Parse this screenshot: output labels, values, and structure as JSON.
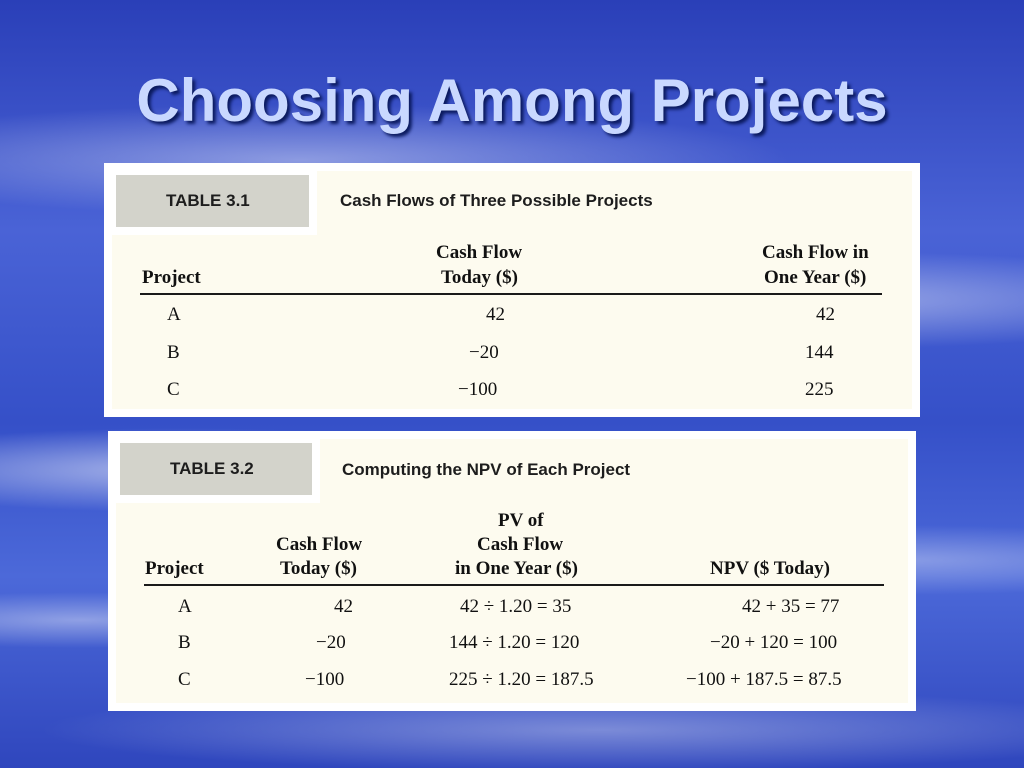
{
  "slide": {
    "title": "Choosing Among Projects"
  },
  "table1": {
    "tag": "TABLE 3.1",
    "caption": "Cash Flows of Three Possible Projects",
    "headers": {
      "project": "Project",
      "today_line1": "Cash Flow",
      "today_line2": "Today ($)",
      "year_line1": "Cash Flow in",
      "year_line2": "One Year ($)"
    },
    "rows": [
      {
        "project": "A",
        "today": "42",
        "one_year": "42"
      },
      {
        "project": "B",
        "today": "−20",
        "one_year": "144"
      },
      {
        "project": "C",
        "today": "−100",
        "one_year": "225"
      }
    ]
  },
  "table2": {
    "tag": "TABLE 3.2",
    "caption": "Computing the NPV of Each Project",
    "headers": {
      "project": "Project",
      "today_line1": "Cash Flow",
      "today_line2": "Today ($)",
      "pv_line1": "PV of",
      "pv_line2": "Cash Flow",
      "pv_line3": "in One Year ($)",
      "npv": "NPV ($ Today)"
    },
    "rows": [
      {
        "project": "A",
        "today": "42",
        "pv": "42 ÷ 1.20 = 35",
        "npv": "42 + 35 = 77"
      },
      {
        "project": "B",
        "today": "−20",
        "pv": "144 ÷ 1.20 = 120",
        "npv": "−20 + 120 = 100"
      },
      {
        "project": "C",
        "today": "−100",
        "pv": "225 ÷ 1.20 = 187.5",
        "npv": "−100 + 187.5 = 87.5"
      }
    ]
  }
}
